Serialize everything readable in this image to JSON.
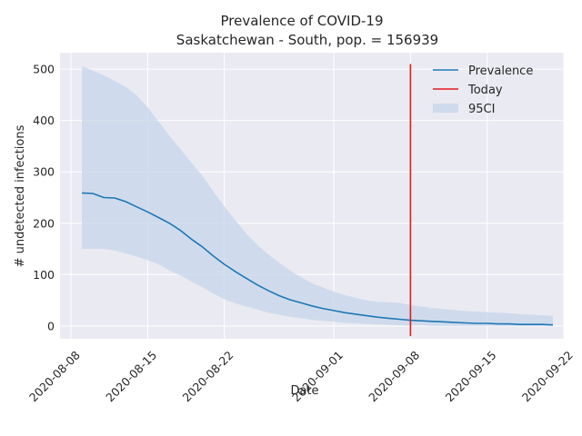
{
  "chart_data": {
    "type": "line",
    "title": "Prevalence of COVID-19",
    "subtitle": "Saskatchewan - South, pop. = 156939",
    "xlabel": "Date",
    "ylabel": "# undetected infections",
    "x_ticks": [
      "2020-08-08",
      "2020-08-15",
      "2020-08-22",
      "2020-09-01",
      "2020-09-08",
      "2020-09-15",
      "2020-09-22"
    ],
    "y_ticks": [
      0,
      100,
      200,
      300,
      400,
      500
    ],
    "xlim": [
      "2020-08-07",
      "2020-09-22"
    ],
    "ylim": [
      -25,
      532
    ],
    "grid": true,
    "legend_position": "top-right",
    "colors": {
      "background": "#eaeaf2",
      "grid": "#ffffff",
      "prevalence": "#1f77b4",
      "today": "#e31a1c",
      "ci_band": "#c5d6ea"
    },
    "series": [
      {
        "name": "Prevalence",
        "x": [
          "2020-08-09",
          "2020-08-10",
          "2020-08-11",
          "2020-08-12",
          "2020-08-13",
          "2020-08-14",
          "2020-08-15",
          "2020-08-16",
          "2020-08-17",
          "2020-08-18",
          "2020-08-19",
          "2020-08-20",
          "2020-08-21",
          "2020-08-22",
          "2020-08-23",
          "2020-08-24",
          "2020-08-25",
          "2020-08-26",
          "2020-08-27",
          "2020-08-28",
          "2020-08-29",
          "2020-08-30",
          "2020-08-31",
          "2020-09-01",
          "2020-09-02",
          "2020-09-03",
          "2020-09-04",
          "2020-09-05",
          "2020-09-06",
          "2020-09-07",
          "2020-09-08",
          "2020-09-09",
          "2020-09-10",
          "2020-09-11",
          "2020-09-12",
          "2020-09-13",
          "2020-09-14",
          "2020-09-15",
          "2020-09-16",
          "2020-09-17",
          "2020-09-18",
          "2020-09-19",
          "2020-09-20",
          "2020-09-21"
        ],
        "values": [
          259,
          258,
          250,
          249,
          242,
          232,
          222,
          211,
          200,
          186,
          169,
          154,
          136,
          120,
          106,
          93,
          80,
          69,
          59,
          51,
          45,
          39,
          34,
          30,
          26,
          23,
          20,
          17,
          15,
          13,
          11,
          10,
          9,
          8,
          7,
          6,
          5,
          5,
          4,
          4,
          3,
          3,
          3,
          2
        ]
      },
      {
        "name": "95CI",
        "x": [
          "2020-08-09",
          "2020-08-10",
          "2020-08-11",
          "2020-08-12",
          "2020-08-13",
          "2020-08-14",
          "2020-08-15",
          "2020-08-16",
          "2020-08-17",
          "2020-08-18",
          "2020-08-19",
          "2020-08-20",
          "2020-08-21",
          "2020-08-22",
          "2020-08-23",
          "2020-08-24",
          "2020-08-25",
          "2020-08-26",
          "2020-08-27",
          "2020-08-28",
          "2020-08-29",
          "2020-08-30",
          "2020-08-31",
          "2020-09-01",
          "2020-09-02",
          "2020-09-03",
          "2020-09-04",
          "2020-09-05",
          "2020-09-06",
          "2020-09-07",
          "2020-09-08",
          "2020-09-09",
          "2020-09-10",
          "2020-09-11",
          "2020-09-12",
          "2020-09-13",
          "2020-09-14",
          "2020-09-15",
          "2020-09-16",
          "2020-09-17",
          "2020-09-18",
          "2020-09-19",
          "2020-09-20",
          "2020-09-21"
        ],
        "upper": [
          506,
          497,
          488,
          477,
          465,
          449,
          426,
          398,
          370,
          344,
          318,
          292,
          262,
          233,
          206,
          180,
          158,
          140,
          123,
          108,
          95,
          83,
          75,
          67,
          60,
          55,
          50,
          47,
          46,
          45,
          41,
          38,
          35,
          33,
          31,
          29,
          28,
          27,
          26,
          25,
          23,
          22,
          21,
          20
        ],
        "lower": [
          150,
          150,
          150,
          147,
          141,
          135,
          128,
          120,
          108,
          98,
          87,
          75,
          63,
          52,
          44,
          38,
          32,
          26,
          22,
          18,
          15,
          12,
          10,
          8,
          6,
          5,
          4,
          3,
          2,
          1,
          1,
          1,
          0,
          0,
          0,
          0,
          0,
          0,
          0,
          0,
          0,
          0,
          0,
          0
        ]
      },
      {
        "name": "Today",
        "x": [
          "2020-09-08",
          "2020-09-08"
        ],
        "values": [
          -20,
          510
        ]
      }
    ]
  }
}
